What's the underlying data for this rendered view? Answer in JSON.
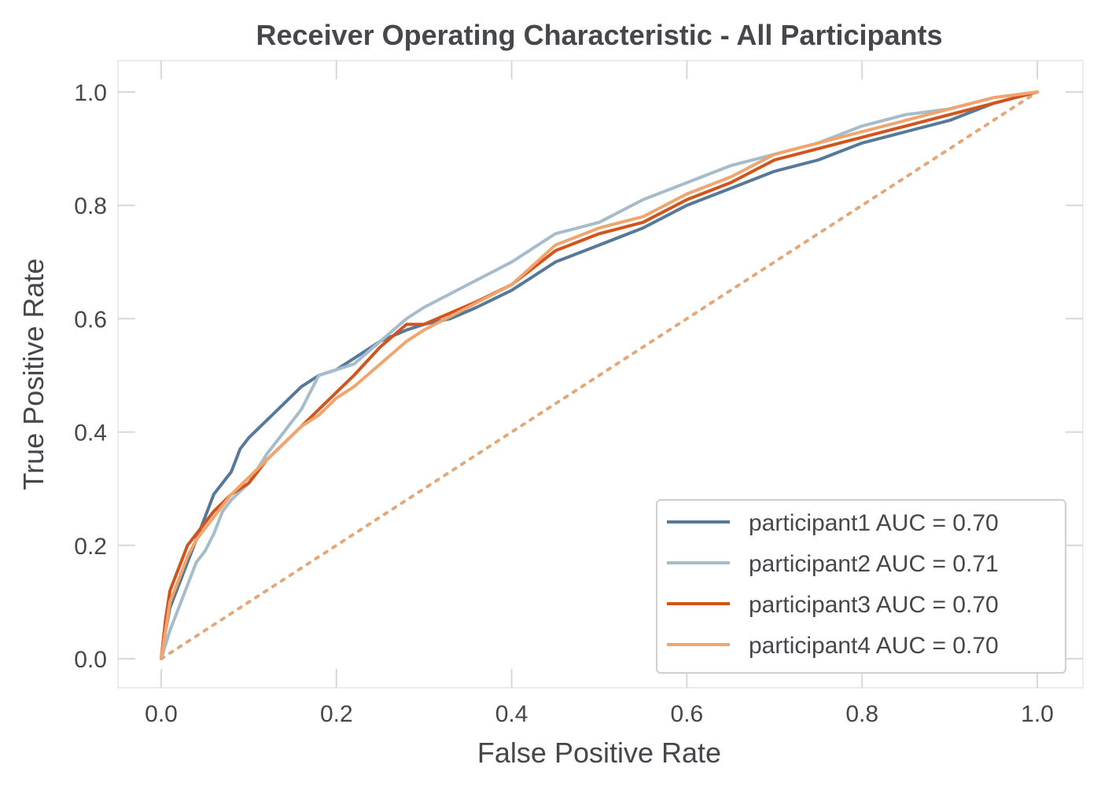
{
  "chart_data": {
    "type": "line",
    "title": "Receiver Operating Characteristic - All Participants",
    "xlabel": "False Positive Rate",
    "ylabel": "True Positive Rate",
    "xlim": [
      0.0,
      1.0
    ],
    "ylim": [
      0.0,
      1.0
    ],
    "xticks": [
      "0.0",
      "0.2",
      "0.4",
      "0.6",
      "0.8",
      "1.0"
    ],
    "yticks": [
      "0.0",
      "0.2",
      "0.4",
      "0.6",
      "0.8",
      "1.0"
    ],
    "grid": false,
    "legend_position": "bottom-right",
    "diagonal": {
      "style": "dotted",
      "color": "#e3a87a",
      "points": [
        [
          0.0,
          0.0
        ],
        [
          1.0,
          1.0
        ]
      ]
    },
    "series": [
      {
        "name": "participant1 AUC = 0.70",
        "color": "#56799a",
        "points": [
          [
            0.0,
            0.0
          ],
          [
            0.005,
            0.05
          ],
          [
            0.01,
            0.09
          ],
          [
            0.02,
            0.13
          ],
          [
            0.03,
            0.17
          ],
          [
            0.04,
            0.21
          ],
          [
            0.05,
            0.25
          ],
          [
            0.06,
            0.29
          ],
          [
            0.07,
            0.31
          ],
          [
            0.08,
            0.33
          ],
          [
            0.09,
            0.37
          ],
          [
            0.1,
            0.39
          ],
          [
            0.12,
            0.42
          ],
          [
            0.14,
            0.45
          ],
          [
            0.16,
            0.48
          ],
          [
            0.18,
            0.5
          ],
          [
            0.2,
            0.51
          ],
          [
            0.22,
            0.53
          ],
          [
            0.25,
            0.56
          ],
          [
            0.28,
            0.58
          ],
          [
            0.3,
            0.59
          ],
          [
            0.33,
            0.6
          ],
          [
            0.36,
            0.62
          ],
          [
            0.4,
            0.65
          ],
          [
            0.45,
            0.7
          ],
          [
            0.5,
            0.73
          ],
          [
            0.55,
            0.76
          ],
          [
            0.6,
            0.8
          ],
          [
            0.65,
            0.83
          ],
          [
            0.7,
            0.86
          ],
          [
            0.75,
            0.88
          ],
          [
            0.8,
            0.91
          ],
          [
            0.85,
            0.93
          ],
          [
            0.9,
            0.95
          ],
          [
            0.95,
            0.98
          ],
          [
            1.0,
            1.0
          ]
        ]
      },
      {
        "name": "participant2 AUC = 0.71",
        "color": "#a6bccb",
        "points": [
          [
            0.0,
            0.0
          ],
          [
            0.01,
            0.05
          ],
          [
            0.02,
            0.09
          ],
          [
            0.03,
            0.13
          ],
          [
            0.04,
            0.17
          ],
          [
            0.05,
            0.19
          ],
          [
            0.06,
            0.22
          ],
          [
            0.07,
            0.26
          ],
          [
            0.08,
            0.28
          ],
          [
            0.1,
            0.31
          ],
          [
            0.12,
            0.36
          ],
          [
            0.14,
            0.4
          ],
          [
            0.16,
            0.44
          ],
          [
            0.18,
            0.5
          ],
          [
            0.2,
            0.51
          ],
          [
            0.22,
            0.52
          ],
          [
            0.25,
            0.56
          ],
          [
            0.28,
            0.6
          ],
          [
            0.3,
            0.62
          ],
          [
            0.35,
            0.66
          ],
          [
            0.4,
            0.7
          ],
          [
            0.45,
            0.75
          ],
          [
            0.5,
            0.77
          ],
          [
            0.55,
            0.81
          ],
          [
            0.6,
            0.84
          ],
          [
            0.65,
            0.87
          ],
          [
            0.7,
            0.89
          ],
          [
            0.75,
            0.91
          ],
          [
            0.8,
            0.94
          ],
          [
            0.85,
            0.96
          ],
          [
            0.9,
            0.97
          ],
          [
            0.95,
            0.99
          ],
          [
            1.0,
            1.0
          ]
        ]
      },
      {
        "name": "participant3 AUC = 0.70",
        "color": "#d2541d",
        "points": [
          [
            0.0,
            0.0
          ],
          [
            0.005,
            0.07
          ],
          [
            0.01,
            0.12
          ],
          [
            0.02,
            0.16
          ],
          [
            0.03,
            0.2
          ],
          [
            0.04,
            0.22
          ],
          [
            0.05,
            0.24
          ],
          [
            0.06,
            0.26
          ],
          [
            0.08,
            0.29
          ],
          [
            0.1,
            0.31
          ],
          [
            0.12,
            0.35
          ],
          [
            0.14,
            0.38
          ],
          [
            0.16,
            0.41
          ],
          [
            0.18,
            0.44
          ],
          [
            0.2,
            0.47
          ],
          [
            0.22,
            0.5
          ],
          [
            0.25,
            0.55
          ],
          [
            0.28,
            0.59
          ],
          [
            0.3,
            0.59
          ],
          [
            0.33,
            0.61
          ],
          [
            0.36,
            0.63
          ],
          [
            0.4,
            0.66
          ],
          [
            0.45,
            0.72
          ],
          [
            0.5,
            0.75
          ],
          [
            0.55,
            0.77
          ],
          [
            0.6,
            0.81
          ],
          [
            0.65,
            0.84
          ],
          [
            0.7,
            0.88
          ],
          [
            0.75,
            0.9
          ],
          [
            0.8,
            0.92
          ],
          [
            0.85,
            0.94
          ],
          [
            0.9,
            0.96
          ],
          [
            0.95,
            0.98
          ],
          [
            1.0,
            1.0
          ]
        ]
      },
      {
        "name": "participant4 AUC = 0.70",
        "color": "#f1a56e",
        "points": [
          [
            0.0,
            0.0
          ],
          [
            0.005,
            0.05
          ],
          [
            0.01,
            0.1
          ],
          [
            0.02,
            0.14
          ],
          [
            0.03,
            0.18
          ],
          [
            0.04,
            0.21
          ],
          [
            0.05,
            0.23
          ],
          [
            0.06,
            0.25
          ],
          [
            0.07,
            0.27
          ],
          [
            0.08,
            0.29
          ],
          [
            0.1,
            0.32
          ],
          [
            0.12,
            0.35
          ],
          [
            0.14,
            0.38
          ],
          [
            0.16,
            0.41
          ],
          [
            0.18,
            0.43
          ],
          [
            0.2,
            0.46
          ],
          [
            0.22,
            0.48
          ],
          [
            0.25,
            0.52
          ],
          [
            0.28,
            0.56
          ],
          [
            0.3,
            0.58
          ],
          [
            0.35,
            0.62
          ],
          [
            0.4,
            0.66
          ],
          [
            0.45,
            0.73
          ],
          [
            0.5,
            0.76
          ],
          [
            0.55,
            0.78
          ],
          [
            0.6,
            0.82
          ],
          [
            0.65,
            0.85
          ],
          [
            0.7,
            0.89
          ],
          [
            0.75,
            0.91
          ],
          [
            0.8,
            0.93
          ],
          [
            0.85,
            0.95
          ],
          [
            0.9,
            0.97
          ],
          [
            0.95,
            0.99
          ],
          [
            1.0,
            1.0
          ]
        ]
      }
    ]
  }
}
